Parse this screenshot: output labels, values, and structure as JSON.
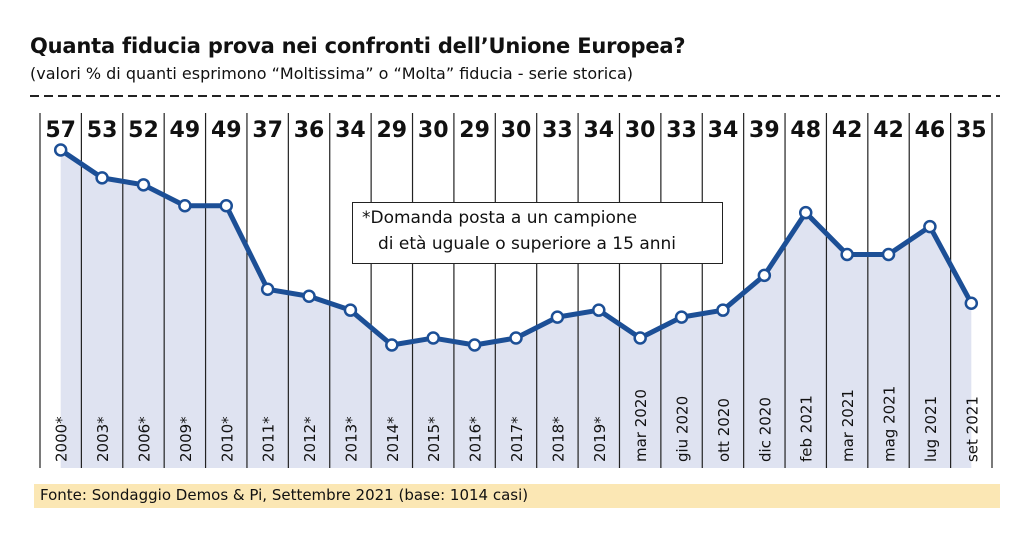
{
  "chart_data": {
    "type": "area",
    "title": "Quanta fiducia prova nei confronti dell’Unione Europea?",
    "subtitle": "(valori % di quanti esprimono “Moltissima” o “Molta” fiducia - serie storica)",
    "categories": [
      "2000*",
      "2003*",
      "2006*",
      "2009*",
      "2010*",
      "2011*",
      "2012*",
      "2013*",
      "2014*",
      "2015*",
      "2016*",
      "2017*",
      "2018*",
      "2019*",
      "mar 2020",
      "giu 2020",
      "ott 2020",
      "dic 2020",
      "feb 2021",
      "mar 2021",
      "mag 2021",
      "lug 2021",
      "set 2021"
    ],
    "values": [
      57,
      53,
      52,
      49,
      49,
      37,
      36,
      34,
      29,
      30,
      29,
      30,
      33,
      34,
      30,
      33,
      34,
      39,
      48,
      42,
      42,
      46,
      35
    ],
    "xlabel": "",
    "ylabel": "",
    "ylim": [
      29,
      57
    ],
    "grid": true,
    "annotation": [
      "*Domanda posta a un campione",
      "di età uguale o superiore a 15 anni"
    ],
    "source": "Fonte: Sondaggio Demos & Pi, Settembre 2021 (base: 1014 casi)",
    "colors": {
      "line": "#1c4f96",
      "area": "#dfe3f1",
      "marker_fill": "#ffffff"
    }
  }
}
